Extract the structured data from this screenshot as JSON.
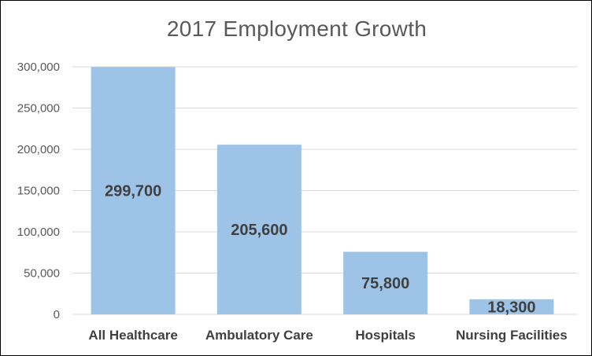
{
  "chart_data": {
    "type": "bar",
    "title": "2017 Employment Growth",
    "categories": [
      "All Healthcare",
      "Ambulatory Care",
      "Hospitals",
      "Nursing Facilities"
    ],
    "values": [
      299700,
      205600,
      75800,
      18300
    ],
    "data_labels": [
      "299,700",
      "205,600",
      "75,800",
      "18,300"
    ],
    "ylim": [
      0,
      300000
    ],
    "yticks": [
      0,
      50000,
      100000,
      150000,
      200000,
      250000,
      300000
    ],
    "ytick_labels": [
      "0",
      "50,000",
      "100,000",
      "150,000",
      "200,000",
      "250,000",
      "300,000"
    ],
    "xlabel": "",
    "ylabel": "",
    "grid": true,
    "legend": "none",
    "bar_color": "#9DC3E6",
    "grid_color": "#D9D9D9",
    "text_color": "#595959"
  }
}
